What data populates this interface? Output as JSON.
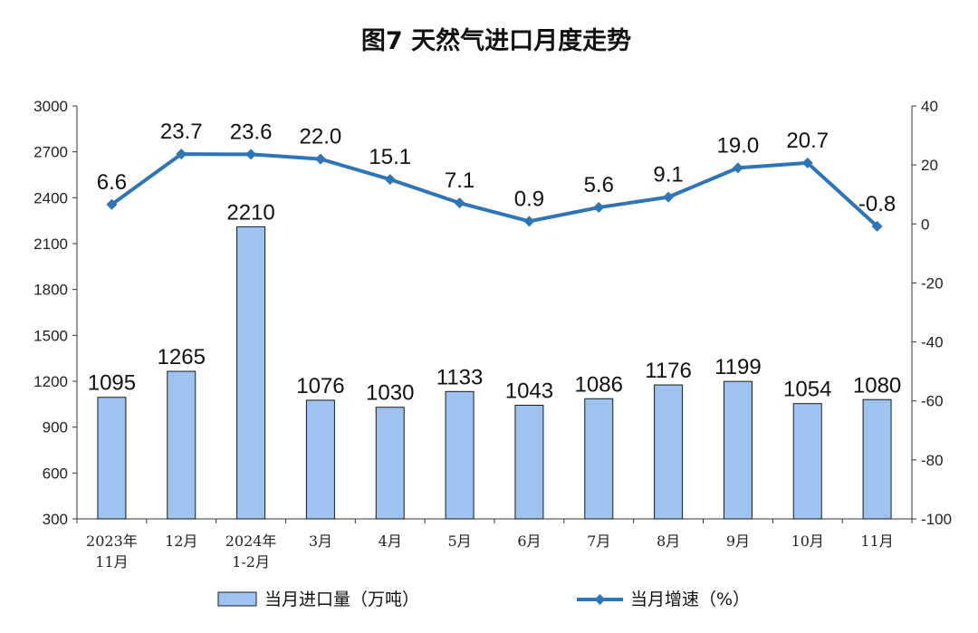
{
  "chart_data": {
    "type": "bar",
    "title": "图7  天然气进口月度走势",
    "categories": [
      [
        "2023年",
        "11月"
      ],
      [
        "12月"
      ],
      [
        "2024年",
        "1-2月"
      ],
      [
        "3月"
      ],
      [
        "4月"
      ],
      [
        "5月"
      ],
      [
        "6月"
      ],
      [
        "7月"
      ],
      [
        "8月"
      ],
      [
        "9月"
      ],
      [
        "10月"
      ],
      [
        "11月"
      ]
    ],
    "series": [
      {
        "name": "当月进口量（万吨）",
        "type": "bar",
        "axis": "left",
        "color": "#9DC3F0",
        "stroke": "#1A1A1A",
        "values": [
          1095,
          1265,
          2210,
          1076,
          1030,
          1133,
          1043,
          1086,
          1176,
          1199,
          1054,
          1080
        ],
        "labels": [
          "1095",
          "1265",
          "2210",
          "1076",
          "1030",
          "1133",
          "1043",
          "1086",
          "1176",
          "1199",
          "1054",
          "1080"
        ]
      },
      {
        "name": "当月增速（%）",
        "type": "line",
        "axis": "right",
        "color": "#2E75B6",
        "values": [
          6.6,
          23.7,
          23.6,
          22.0,
          15.1,
          7.1,
          0.9,
          5.6,
          9.1,
          19.0,
          20.7,
          -0.8
        ],
        "labels": [
          "6.6",
          "23.7",
          "23.6",
          "22.0",
          "15.1",
          "7.1",
          "0.9",
          "5.6",
          "9.1",
          "19.0",
          "20.7",
          "-0.8"
        ]
      }
    ],
    "y_left": {
      "min": 300,
      "max": 3000,
      "ticks": [
        "300",
        "600",
        "900",
        "1200",
        "1500",
        "1800",
        "2100",
        "2400",
        "2700",
        "3000"
      ]
    },
    "y_right": {
      "min": -100,
      "max": 40,
      "ticks": [
        "-100",
        "-80",
        "-60",
        "-40",
        "-20",
        "0",
        "20",
        "40"
      ]
    },
    "grid": false,
    "legend_position": "bottom"
  }
}
